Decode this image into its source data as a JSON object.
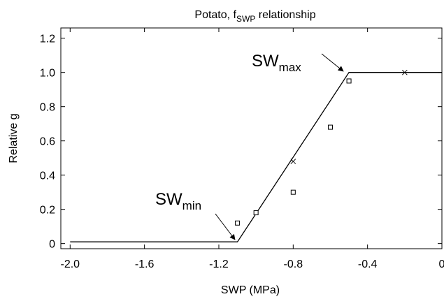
{
  "chart_data": {
    "type": "line",
    "title": [
      "Potato, f",
      "SWP",
      " relationship"
    ],
    "x_label": "SWP (MPa)",
    "y_label": "Relative g",
    "xlim": [
      -2.05,
      0
    ],
    "ylim": [
      -0.03,
      1.26
    ],
    "xticks": [
      {
        "value": -2,
        "label": "-2.0"
      },
      -1.6,
      -1.2,
      -0.8,
      -0.4,
      0
    ],
    "yticks": [
      0,
      0.2,
      0.4,
      0.6,
      0.8,
      {
        "value": 1,
        "label": "1.0"
      },
      1.2
    ],
    "series": [
      {
        "color": "#000000",
        "marker": "none",
        "line": true,
        "x": [
          -2.0,
          -1.1,
          -0.5,
          0
        ],
        "values": [
          0.01,
          0.01,
          1.0,
          1.0
        ]
      },
      {
        "color": "#000000",
        "marker": "square",
        "line": false,
        "x": [
          -1.1,
          -1.0,
          -0.8,
          -0.6,
          -0.5
        ],
        "values": [
          0.12,
          0.18,
          0.3,
          0.68,
          0.95
        ]
      },
      {
        "color": "#000000",
        "marker": "x",
        "line": false,
        "x": [
          -0.8,
          -0.2
        ],
        "values": [
          0.48,
          1.0
        ]
      }
    ],
    "annotations": [
      {
        "text": "SW",
        "subscript": "max"
      },
      {
        "text": "SW",
        "subscript": "min"
      }
    ]
  }
}
